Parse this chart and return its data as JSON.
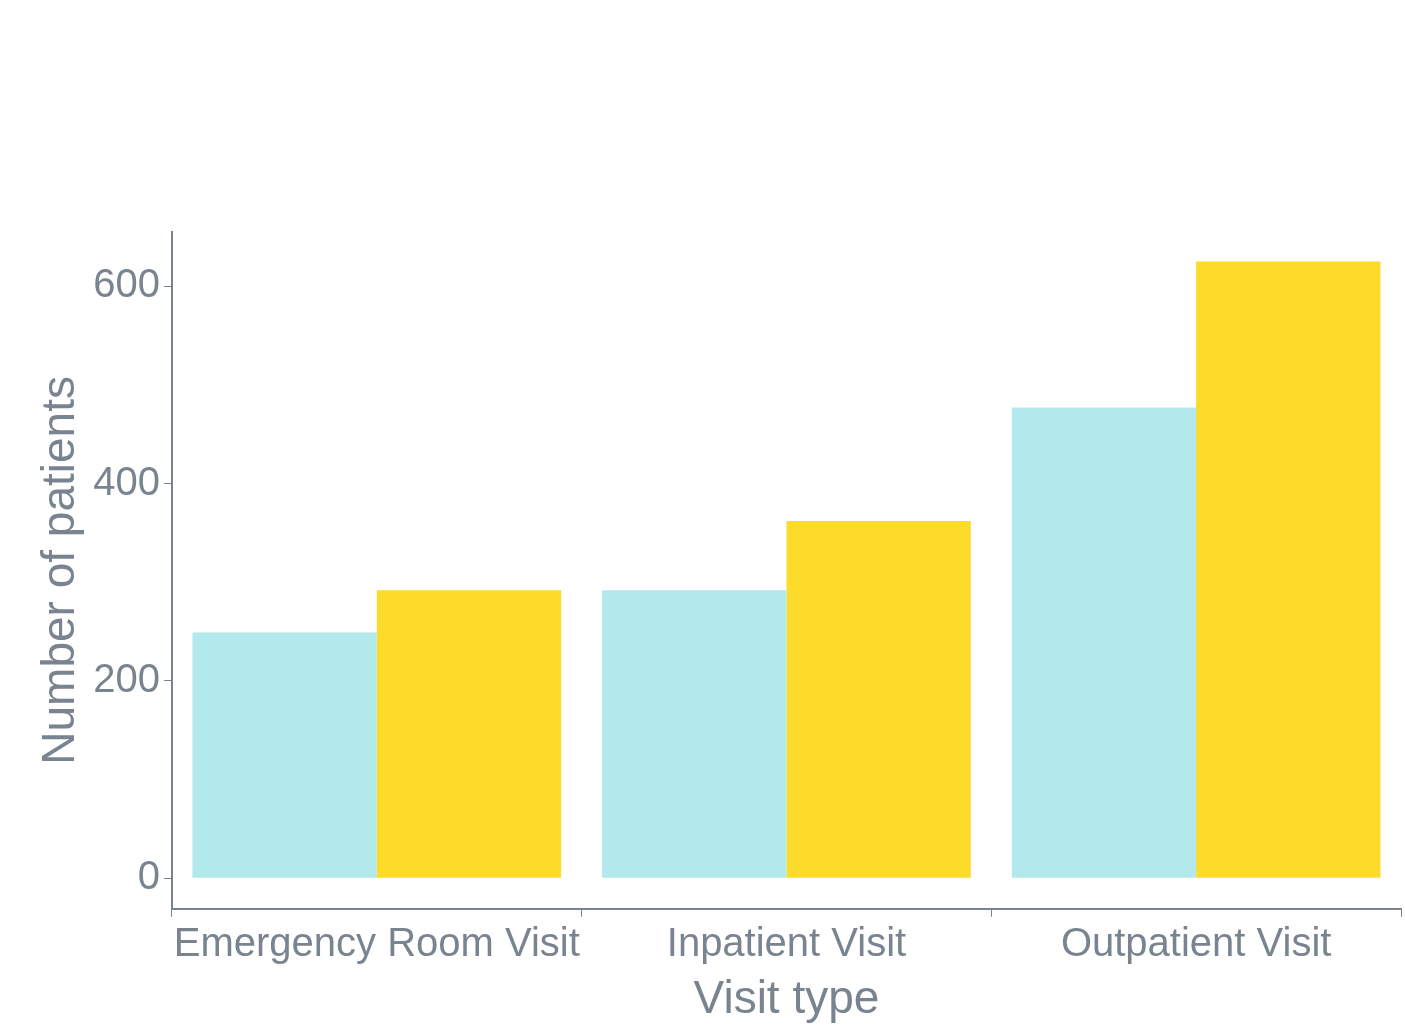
{
  "chart_data": {
    "type": "bar",
    "xlabel": "Visit type",
    "ylabel": "Number of patients",
    "categories": [
      "Emergency Room Visit",
      "Inpatient Visit",
      "Outpatient Visit"
    ],
    "series": [
      {
        "color": "#b3e9ec",
        "values": [
          249,
          292,
          477
        ]
      },
      {
        "color": "#fddb2a",
        "values": [
          292,
          362,
          625
        ]
      }
    ],
    "ylim": [
      -31,
      655
    ],
    "yticks": [
      0,
      200,
      400,
      600
    ],
    "legend": false
  }
}
